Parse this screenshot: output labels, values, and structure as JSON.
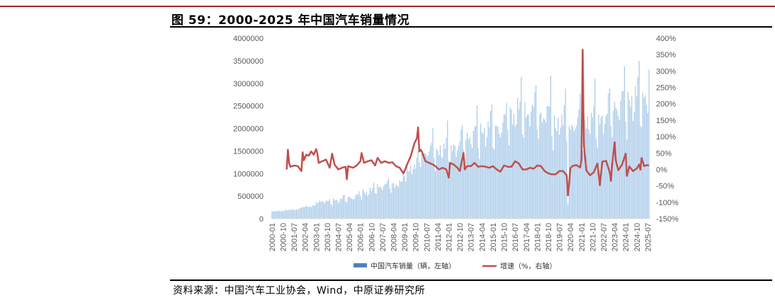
{
  "title": "图 59：2000-2025 年中国汽车销量情况",
  "source": "资料来源：中国汽车工业协会，Wind，中原证券研究所",
  "chart_data": {
    "type": "bar+line",
    "left_axis": {
      "range": [
        0,
        4000000
      ],
      "ticks": [
        "4000000",
        "3500000",
        "3000000",
        "2500000",
        "2000000",
        "1500000",
        "1000000",
        "500000",
        "0"
      ]
    },
    "right_axis": {
      "range": [
        -150,
        400
      ],
      "ticks": [
        "400%",
        "350%",
        "300%",
        "250%",
        "200%",
        "150%",
        "100%",
        "50%",
        "0%",
        "-50%",
        "-100%",
        "-150%"
      ]
    },
    "x_tick_labels": [
      "2000-01",
      "2000-10",
      "2001-07",
      "2002-04",
      "2003-01",
      "2003-10",
      "2004-07",
      "2005-04",
      "2006-01",
      "2006-10",
      "2007-07",
      "2008-04",
      "2009-01",
      "2009-10",
      "2010-07",
      "2011-04",
      "2012-01",
      "2012-10",
      "2013-07",
      "2014-04",
      "2015-01",
      "2015-10",
      "2016-07",
      "2017-04",
      "2018-01",
      "2018-10",
      "2019-07",
      "2020-04",
      "2021-01",
      "2021-10",
      "2022-07",
      "2023-04",
      "2024-01",
      "2024-10",
      "2025-07"
    ],
    "period": {
      "start": "2000-01",
      "end": "2025-08",
      "frequency": "monthly"
    },
    "series": [
      {
        "name": "中国汽车销量（辆，左轴）",
        "type": "bar",
        "color": "#9dc3e6",
        "legend_color": "#4f81bd",
        "annual_average": {
          "2000": 170000,
          "2001": 200000,
          "2002": 270000,
          "2003": 380000,
          "2004": 420000,
          "2005": 480000,
          "2006": 600000,
          "2007": 730000,
          "2008": 780000,
          "2009": 1140000,
          "2010": 1500000,
          "2011": 1540000,
          "2012": 1610000,
          "2013": 1830000,
          "2014": 1960000,
          "2015": 2050000,
          "2016": 2340000,
          "2017": 2400000,
          "2018": 2340000,
          "2019": 2140000,
          "2020": 2110000,
          "2021": 2180000,
          "2022": 2240000,
          "2023": 2510000,
          "2024": 2630000,
          "2025": 2720000
        },
        "notable": {
          "2020-02": 310000,
          "2024-12": 3500000,
          "2025-08": 3300000
        }
      },
      {
        "name": "增速（%，右轴）",
        "type": "line",
        "color": "#c0504d",
        "starts": "2001-01",
        "points": [
          {
            "x": "2001-01",
            "y": 0
          },
          {
            "x": "2001-02",
            "y": 60
          },
          {
            "x": "2001-03",
            "y": 20
          },
          {
            "x": "2001-04",
            "y": 8
          },
          {
            "x": "2001-07",
            "y": 12
          },
          {
            "x": "2001-10",
            "y": 10
          },
          {
            "x": "2002-01",
            "y": -5
          },
          {
            "x": "2002-02",
            "y": 52
          },
          {
            "x": "2002-03",
            "y": 28
          },
          {
            "x": "2002-05",
            "y": 45
          },
          {
            "x": "2002-07",
            "y": 42
          },
          {
            "x": "2002-09",
            "y": 55
          },
          {
            "x": "2002-11",
            "y": 45
          },
          {
            "x": "2003-01",
            "y": 62
          },
          {
            "x": "2003-02",
            "y": 48
          },
          {
            "x": "2003-03",
            "y": 20
          },
          {
            "x": "2003-06",
            "y": 25
          },
          {
            "x": "2003-09",
            "y": 30
          },
          {
            "x": "2003-12",
            "y": 5
          },
          {
            "x": "2004-02",
            "y": 48
          },
          {
            "x": "2004-04",
            "y": 15
          },
          {
            "x": "2004-07",
            "y": 0
          },
          {
            "x": "2004-10",
            "y": 5
          },
          {
            "x": "2005-01",
            "y": 8
          },
          {
            "x": "2005-02",
            "y": -30
          },
          {
            "x": "2005-03",
            "y": 10
          },
          {
            "x": "2005-07",
            "y": 5
          },
          {
            "x": "2005-10",
            "y": 12
          },
          {
            "x": "2006-01",
            "y": 25
          },
          {
            "x": "2006-02",
            "y": 50
          },
          {
            "x": "2006-04",
            "y": 20
          },
          {
            "x": "2006-07",
            "y": 25
          },
          {
            "x": "2006-10",
            "y": 28
          },
          {
            "x": "2007-01",
            "y": 12
          },
          {
            "x": "2007-03",
            "y": 35
          },
          {
            "x": "2007-06",
            "y": 20
          },
          {
            "x": "2007-09",
            "y": 25
          },
          {
            "x": "2007-12",
            "y": 20
          },
          {
            "x": "2008-03",
            "y": 22
          },
          {
            "x": "2008-06",
            "y": 10
          },
          {
            "x": "2008-09",
            "y": 5
          },
          {
            "x": "2008-12",
            "y": -12
          },
          {
            "x": "2009-01",
            "y": -5
          },
          {
            "x": "2009-03",
            "y": 15
          },
          {
            "x": "2009-06",
            "y": 40
          },
          {
            "x": "2009-09",
            "y": 80
          },
          {
            "x": "2009-11",
            "y": 95
          },
          {
            "x": "2009-12",
            "y": 128
          },
          {
            "x": "2010-01",
            "y": 55
          },
          {
            "x": "2010-02",
            "y": 60
          },
          {
            "x": "2010-03",
            "y": 55
          },
          {
            "x": "2010-06",
            "y": 25
          },
          {
            "x": "2010-09",
            "y": 20
          },
          {
            "x": "2010-12",
            "y": 15
          },
          {
            "x": "2011-02",
            "y": 10
          },
          {
            "x": "2011-05",
            "y": 0
          },
          {
            "x": "2011-08",
            "y": 5
          },
          {
            "x": "2011-11",
            "y": 0
          },
          {
            "x": "2012-01",
            "y": -25
          },
          {
            "x": "2012-02",
            "y": 20
          },
          {
            "x": "2012-05",
            "y": 15
          },
          {
            "x": "2012-08",
            "y": 5
          },
          {
            "x": "2012-10",
            "y": -5
          },
          {
            "x": "2013-01",
            "y": 50
          },
          {
            "x": "2013-02",
            "y": 0
          },
          {
            "x": "2013-04",
            "y": 10
          },
          {
            "x": "2013-07",
            "y": 10
          },
          {
            "x": "2013-10",
            "y": 20
          },
          {
            "x": "2014-01",
            "y": 8
          },
          {
            "x": "2014-04",
            "y": 10
          },
          {
            "x": "2014-07",
            "y": 8
          },
          {
            "x": "2014-10",
            "y": 5
          },
          {
            "x": "2015-01",
            "y": 10
          },
          {
            "x": "2015-04",
            "y": 0
          },
          {
            "x": "2015-07",
            "y": -7
          },
          {
            "x": "2015-10",
            "y": 12
          },
          {
            "x": "2016-01",
            "y": 8
          },
          {
            "x": "2016-04",
            "y": 8
          },
          {
            "x": "2016-07",
            "y": 25
          },
          {
            "x": "2016-10",
            "y": 18
          },
          {
            "x": "2017-01",
            "y": 0
          },
          {
            "x": "2017-04",
            "y": 0
          },
          {
            "x": "2017-07",
            "y": 5
          },
          {
            "x": "2017-10",
            "y": 2
          },
          {
            "x": "2018-01",
            "y": 12
          },
          {
            "x": "2018-04",
            "y": 10
          },
          {
            "x": "2018-07",
            "y": -5
          },
          {
            "x": "2018-10",
            "y": -12
          },
          {
            "x": "2019-01",
            "y": -15
          },
          {
            "x": "2019-04",
            "y": -15
          },
          {
            "x": "2019-07",
            "y": -5
          },
          {
            "x": "2019-10",
            "y": -5
          },
          {
            "x": "2020-01",
            "y": -18
          },
          {
            "x": "2020-02",
            "y": -79
          },
          {
            "x": "2020-03",
            "y": -43
          },
          {
            "x": "2020-04",
            "y": 4
          },
          {
            "x": "2020-06",
            "y": 11
          },
          {
            "x": "2020-09",
            "y": 13
          },
          {
            "x": "2020-12",
            "y": 6
          },
          {
            "x": "2021-01",
            "y": 30
          },
          {
            "x": "2021-02",
            "y": 365
          },
          {
            "x": "2021-03",
            "y": 75
          },
          {
            "x": "2021-05",
            "y": -3
          },
          {
            "x": "2021-08",
            "y": -18
          },
          {
            "x": "2021-11",
            "y": -9
          },
          {
            "x": "2022-02",
            "y": 18
          },
          {
            "x": "2022-04",
            "y": -48
          },
          {
            "x": "2022-05",
            "y": -12
          },
          {
            "x": "2022-06",
            "y": 24
          },
          {
            "x": "2022-09",
            "y": 26
          },
          {
            "x": "2022-12",
            "y": -8
          },
          {
            "x": "2023-01",
            "y": -35
          },
          {
            "x": "2023-02",
            "y": 14
          },
          {
            "x": "2023-04",
            "y": 83
          },
          {
            "x": "2023-05",
            "y": 27
          },
          {
            "x": "2023-07",
            "y": -2
          },
          {
            "x": "2023-10",
            "y": 14
          },
          {
            "x": "2024-01",
            "y": 48
          },
          {
            "x": "2024-02",
            "y": -20
          },
          {
            "x": "2024-04",
            "y": 9
          },
          {
            "x": "2024-07",
            "y": -5
          },
          {
            "x": "2024-10",
            "y": 3
          },
          {
            "x": "2024-12",
            "y": 15
          },
          {
            "x": "2025-01",
            "y": -1
          },
          {
            "x": "2025-02",
            "y": 35
          },
          {
            "x": "2025-04",
            "y": 10
          },
          {
            "x": "2025-06",
            "y": 13
          },
          {
            "x": "2025-08",
            "y": 12
          }
        ]
      }
    ]
  }
}
